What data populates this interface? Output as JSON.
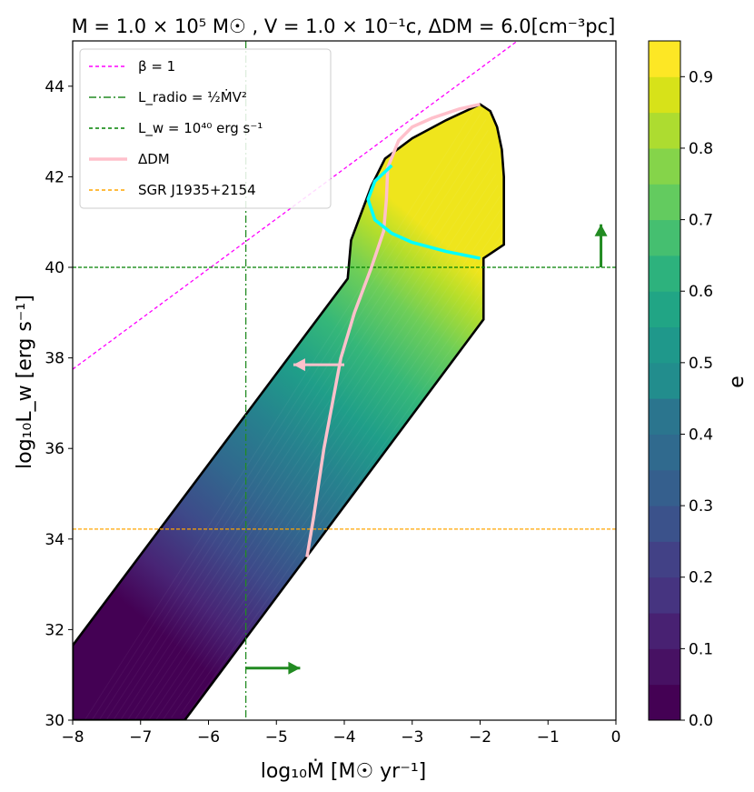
{
  "chart_data": {
    "type": "contour",
    "title": "M = 1.0 × 10⁵ M☉ , V = 1.0 × 10⁻¹c, ΔDM = 6.0[cm⁻³pc]",
    "xlabel": "log₁₀Ṁ [M☉ yr⁻¹]",
    "ylabel": "log₁₀L_w [erg s⁻¹]",
    "xlim": [
      -8,
      0
    ],
    "ylim": [
      30,
      45
    ],
    "xticks": [
      -8,
      -7,
      -6,
      -5,
      -4,
      -3,
      -2,
      -1,
      0
    ],
    "xtick_labels": [
      "−8",
      "−7",
      "−6",
      "−5",
      "−4",
      "−3",
      "−2",
      "−1",
      "0"
    ],
    "yticks": [
      30,
      32,
      34,
      36,
      38,
      40,
      42,
      44
    ],
    "ytick_labels": [
      "30",
      "32",
      "34",
      "36",
      "38",
      "40",
      "42",
      "44"
    ],
    "legend_position": "top-left",
    "legend": [
      {
        "label": "β = 1",
        "color": "#ff00ff",
        "style": "dashed"
      },
      {
        "label": "L_radio = ½ṀV²",
        "color": "#228b22",
        "style": "dashdot"
      },
      {
        "label": "L_w = 10⁴⁰ erg s⁻¹",
        "color": "#008000",
        "style": "dashed"
      },
      {
        "label": "ΔDM",
        "color": "#ffc0cb",
        "style": "solid"
      },
      {
        "label": "SGR J1935+2154",
        "color": "#ffa500",
        "style": "dashed"
      }
    ],
    "lines": {
      "beta1": {
        "x": [
          -8,
          -1.45
        ],
        "y": [
          37.75,
          45
        ]
      },
      "l_radio_x": -5.45,
      "l_w_y": 40,
      "sgr_y": 34.22
    },
    "region_boundary": {
      "x": [
        -8,
        -3.95,
        -3.9,
        -3.75,
        -3.6,
        -3.4,
        -3.0,
        -2.5,
        -2.0,
        -1.85,
        -1.75,
        -1.68,
        -1.65,
        -1.65,
        -1.95,
        -1.95,
        -1.95,
        -6.35,
        -8
      ],
      "y": [
        31.65,
        39.75,
        40.6,
        41.2,
        41.8,
        42.4,
        42.85,
        43.25,
        43.6,
        43.45,
        43.1,
        42.6,
        42.0,
        40.5,
        40.2,
        40.2,
        38.85,
        30,
        30
      ]
    },
    "delta_dm_curve": {
      "x": [
        -4.55,
        -4.45,
        -4.3,
        -4.05,
        -3.85,
        -3.6,
        -3.42,
        -3.38,
        -3.36,
        -3.2,
        -3.0,
        -2.7,
        -2.3,
        -2.0
      ],
      "y": [
        33.6,
        34.5,
        36.0,
        38.0,
        39.0,
        40.0,
        40.8,
        41.5,
        42.2,
        42.8,
        43.1,
        43.3,
        43.5,
        43.6
      ]
    },
    "cyan_curve": {
      "x": [
        -3.3,
        -3.55,
        -3.65,
        -3.55,
        -3.3,
        -3.0,
        -2.5,
        -2.0
      ],
      "y": [
        42.25,
        41.9,
        41.5,
        41.05,
        40.75,
        40.55,
        40.35,
        40.2
      ]
    },
    "arrows": [
      {
        "from": [
          -4.0,
          37.85
        ],
        "to": [
          -4.75,
          37.85
        ],
        "color": "#ffc0cb"
      },
      {
        "from": [
          -5.45,
          31.15
        ],
        "to": [
          -4.65,
          31.15
        ],
        "color": "#228b22"
      },
      {
        "from": [
          -0.22,
          40.0
        ],
        "to": [
          -0.22,
          40.95
        ],
        "color": "#228b22"
      }
    ],
    "colorbar": {
      "label": "e",
      "min": 0.0,
      "max": 0.95,
      "ticks": [
        0.0,
        0.1,
        0.2,
        0.3,
        0.4,
        0.5,
        0.6,
        0.7,
        0.8,
        0.9
      ],
      "tick_labels": [
        "0.0",
        "0.1",
        "0.2",
        "0.3",
        "0.4",
        "0.5",
        "0.6",
        "0.7",
        "0.8",
        "0.9"
      ],
      "levels": 19
    }
  }
}
